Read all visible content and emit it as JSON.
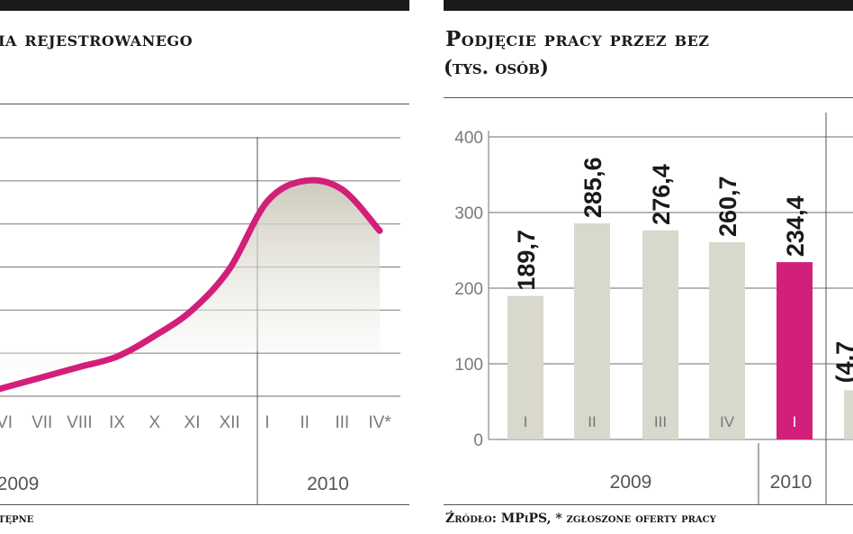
{
  "colors": {
    "accent": "#d21f7a",
    "bar": "#d9d8cc",
    "grid": "#8a8a8a"
  },
  "left": {
    "title": "ia rejestrowanego",
    "source": "tępne"
  },
  "right": {
    "title": "Podjęcie pracy przez bez",
    "subtitle": "(tys. osób)",
    "source": "Źródło: MPiPS, * zgłoszone oferty pracy"
  },
  "chart_data": [
    {
      "type": "area",
      "title": "ia rejestrowanego",
      "categories": [
        "VI",
        "VII",
        "VIII",
        "IX",
        "X",
        "XI",
        "XII",
        "I",
        "II",
        "III",
        "IV*"
      ],
      "year_groups": [
        {
          "label": "2009",
          "from": "VI",
          "to": "XII"
        },
        {
          "label": "2010",
          "from": "I",
          "to": "IV*"
        }
      ],
      "values": [
        0.5,
        1.1,
        1.7,
        2.3,
        3.5,
        5.0,
        7.4,
        11.3,
        12.5,
        12.0,
        9.6
      ],
      "partial_first_point": -0.1,
      "ylim": [
        0,
        15
      ],
      "grid": true
    },
    {
      "type": "bar",
      "title": "Podjęcie pracy przez bez",
      "subtitle": "(tys. osób)",
      "categories": [
        "I",
        "II",
        "III",
        "IV",
        "I"
      ],
      "values": [
        189.7,
        285.6,
        276.4,
        260.7,
        234.4
      ],
      "value_labels": [
        "189,7",
        "285,6",
        "276,4",
        "260,7",
        "234,4"
      ],
      "highlight_index": 4,
      "year_groups": [
        {
          "label": "2009",
          "from_index": 0,
          "to_index": 3
        },
        {
          "label": "2010",
          "from_index": 4,
          "to_index": 4
        }
      ],
      "yticks": [
        0,
        100,
        200,
        300,
        400
      ],
      "ylim": [
        0,
        400
      ],
      "grid": true,
      "cut_off_next_series": {
        "value": 65,
        "label_fragment": "(4,7"
      }
    }
  ]
}
